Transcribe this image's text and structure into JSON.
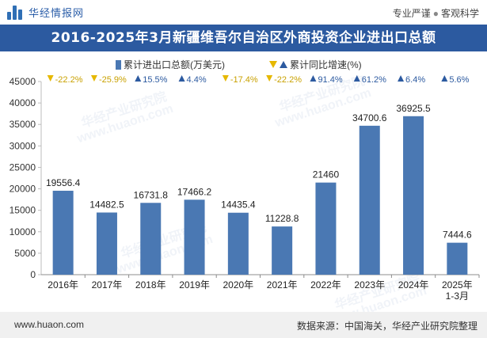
{
  "brand": {
    "name": "华经情报网",
    "slogan_left": "专业严谨",
    "slogan_right": "客观科学"
  },
  "title": "2016-2025年3月新疆维吾尔自治区外商投资企业进出口总额",
  "colors": {
    "bar": "#4a78b3",
    "down": "#e6b800",
    "up": "#2c5aa0",
    "title_bg": "#2c5aa0"
  },
  "chart_data": {
    "type": "bar",
    "categories": [
      "2016年",
      "2017年",
      "2018年",
      "2019年",
      "2020年",
      "2021年",
      "2022年",
      "2023年",
      "2024年",
      "2025年\n1-3月"
    ],
    "series": [
      {
        "name": "累计进出口总额(万美元)",
        "values": [
          19556.4,
          14482.5,
          16731.8,
          17466.2,
          14435.4,
          11228.8,
          21460,
          34700.6,
          36925.5,
          7444.6
        ],
        "labels": [
          "19556.4",
          "14482.5",
          "16731.8",
          "17466.2",
          "14435.4",
          "11228.8",
          "21460",
          "34700.6",
          "36925.5",
          "7444.6"
        ]
      },
      {
        "name": "累计同比增速(%)",
        "values": [
          -22.2,
          -25.9,
          15.5,
          4.4,
          -17.4,
          -22.2,
          91.4,
          61.2,
          6.4,
          5.6
        ],
        "labels": [
          "-22.2%",
          "-25.9%",
          "15.5%",
          "4.4%",
          "-17.4%",
          "-22.2%",
          "91.4%",
          "61.2%",
          "6.4%",
          "5.6%"
        ]
      }
    ],
    "yticks": [
      "0",
      "5000",
      "10000",
      "15000",
      "20000",
      "25000",
      "30000",
      "35000",
      "40000",
      "45000"
    ],
    "ylim": [
      0,
      45000
    ],
    "legend_position": "top"
  },
  "watermarks": [
    "华经产业研究院",
    "www.huaon.com"
  ],
  "footer": {
    "site": "www.huaon.com",
    "source": "数据来源：中国海关，华经产业研究院整理"
  }
}
